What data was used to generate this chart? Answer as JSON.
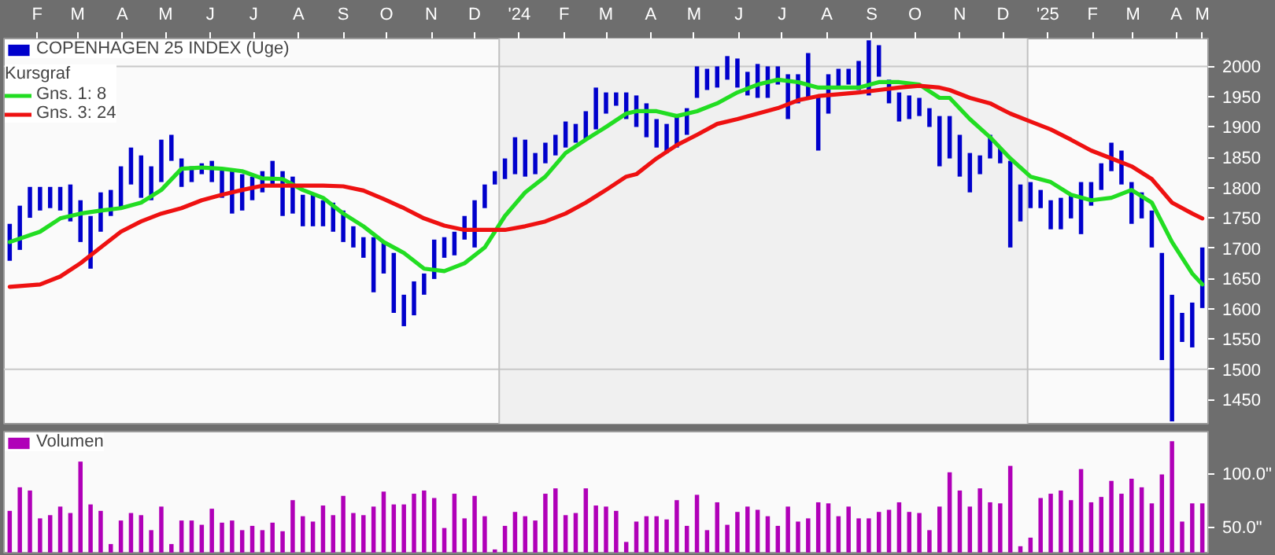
{
  "chart_data": [
    {
      "type": "bar",
      "x": [
        "2023-01-27",
        "2023-02-03",
        "2023-02-10",
        "2023-02-17",
        "2023-02-24",
        "2023-03-03",
        "2023-03-10",
        "2023-03-17",
        "2023-03-24",
        "2023-03-31",
        "2023-04-07",
        "2023-04-14",
        "2023-04-21",
        "2023-04-28",
        "2023-05-05",
        "2023-05-12",
        "2023-05-19",
        "2023-05-26",
        "2023-06-02",
        "2023-06-09",
        "2023-06-16",
        "2023-06-23",
        "2023-06-30",
        "2023-07-07",
        "2023-07-14",
        "2023-07-21",
        "2023-07-28",
        "2023-08-04",
        "2023-08-11",
        "2023-08-18",
        "2023-08-25",
        "2023-09-01",
        "2023-09-08",
        "2023-09-15",
        "2023-09-22",
        "2023-09-29",
        "2023-10-06",
        "2023-10-13",
        "2023-10-20",
        "2023-10-27",
        "2023-11-03",
        "2023-11-10",
        "2023-11-17",
        "2023-11-24",
        "2023-12-01",
        "2023-12-08",
        "2023-12-15",
        "2023-12-22",
        "2023-12-29",
        "2024-01-05",
        "2024-01-12",
        "2024-01-19",
        "2024-01-26",
        "2024-02-02",
        "2024-02-09",
        "2024-02-16",
        "2024-02-23",
        "2024-03-01",
        "2024-03-08",
        "2024-03-15",
        "2024-03-22",
        "2024-03-29",
        "2024-04-05",
        "2024-04-12",
        "2024-04-19",
        "2024-04-26",
        "2024-05-03",
        "2024-05-10",
        "2024-05-17",
        "2024-05-24",
        "2024-05-31",
        "2024-06-07",
        "2024-06-14",
        "2024-06-21",
        "2024-06-28",
        "2024-07-05",
        "2024-07-12",
        "2024-07-19",
        "2024-07-26",
        "2024-08-02",
        "2024-08-09",
        "2024-08-16",
        "2024-08-23",
        "2024-08-30",
        "2024-09-06",
        "2024-09-13",
        "2024-09-20",
        "2024-09-27",
        "2024-10-04",
        "2024-10-11",
        "2024-10-18",
        "2024-10-25",
        "2024-11-01",
        "2024-11-08",
        "2024-11-15",
        "2024-11-22",
        "2024-11-29",
        "2024-12-06",
        "2024-12-13",
        "2024-12-20",
        "2024-12-27",
        "2025-01-03",
        "2025-01-10",
        "2025-01-17",
        "2025-01-24",
        "2025-01-31",
        "2025-02-07",
        "2025-02-14",
        "2025-02-21",
        "2025-02-28",
        "2025-03-07",
        "2025-03-14",
        "2025-03-21",
        "2025-03-28",
        "2025-04-04",
        "2025-04-11",
        "2025-04-18",
        "2025-04-25",
        "2025-05-02"
      ],
      "series": [
        {
          "name": "COPENHAGEN 25 INDEX (Uge)",
          "color": "#0000cc",
          "base": [
            1679,
            1697,
            1750,
            1762,
            1766,
            1762,
            1744,
            1710,
            1666,
            1727,
            1753,
            1766,
            1805,
            1783,
            1779,
            1809,
            1844,
            1801,
            1809,
            1822,
            1809,
            1783,
            1757,
            1762,
            1779,
            1792,
            1805,
            1753,
            1757,
            1736,
            1736,
            1736,
            1727,
            1710,
            1701,
            1684,
            1627,
            1658,
            1593,
            1571,
            1589,
            1623,
            1649,
            1684,
            1688,
            1714,
            1701,
            1766,
            1805,
            1814,
            1822,
            1818,
            1822,
            1840,
            1853,
            1866,
            1874,
            1879,
            1896,
            1922,
            1935,
            1913,
            1900,
            1883,
            1866,
            1857,
            1866,
            1887,
            1948,
            1961,
            1965,
            1978,
            1965,
            1952,
            1948,
            1948,
            1970,
            1913,
            1939,
            1948,
            1861,
            1922,
            1965,
            1970,
            1961,
            1952,
            1983,
            1939,
            1909,
            1913,
            1918,
            1900,
            1835,
            1848,
            1818,
            1792,
            1822,
            1848,
            1840,
            1701,
            1744,
            1766,
            1766,
            1731,
            1731,
            1749,
            1723,
            1770,
            1796,
            1827,
            1805,
            1740,
            1749,
            1701,
            1515,
            1414,
            1545,
            1536,
            1601
          ],
          "values": [
            61,
            73,
            51,
            39,
            35,
            39,
            61,
            69,
            87,
            65,
            43,
            69,
            61,
            70,
            56,
            70,
            43,
            47,
            26,
            18,
            35,
            48,
            70,
            60,
            39,
            35,
            39,
            74,
            61,
            52,
            52,
            43,
            48,
            52,
            35,
            34,
            91,
            52,
            99,
            52,
            56,
            35,
            65,
            34,
            39,
            39,
            78,
            39,
            22,
            34,
            61,
            61,
            35,
            34,
            34,
            43,
            31,
            47,
            69,
            35,
            22,
            44,
            52,
            56,
            47,
            48,
            52,
            44,
            52,
            35,
            35,
            39,
            48,
            39,
            56,
            52,
            30,
            74,
            48,
            74,
            91,
            65,
            31,
            26,
            48,
            91,
            52,
            39,
            48,
            39,
            30,
            31,
            83,
            70,
            69,
            65,
            31,
            39,
            26,
            143,
            61,
            43,
            30,
            48,
            52,
            39,
            86,
            39,
            44,
            47,
            56,
            69,
            43,
            61,
            177,
            209,
            48,
            74,
            100
          ]
        },
        {
          "name": "Gns. 1: 8",
          "type": "line",
          "color": "#22dd22",
          "x": [
            "2023-01-27",
            "2023-02-17",
            "2023-03-03",
            "2023-03-17",
            "2023-03-31",
            "2023-04-14",
            "2023-04-28",
            "2023-05-12",
            "2023-05-26",
            "2023-06-09",
            "2023-06-23",
            "2023-07-07",
            "2023-07-21",
            "2023-08-04",
            "2023-08-18",
            "2023-09-01",
            "2023-09-15",
            "2023-09-29",
            "2023-10-13",
            "2023-10-27",
            "2023-11-10",
            "2023-11-24",
            "2023-12-08",
            "2023-12-22",
            "2024-01-05",
            "2024-01-19",
            "2024-02-02",
            "2024-02-16",
            "2024-03-01",
            "2024-03-15",
            "2024-03-29",
            "2024-04-05",
            "2024-04-19",
            "2024-05-03",
            "2024-05-17",
            "2024-05-31",
            "2024-06-14",
            "2024-06-28",
            "2024-07-12",
            "2024-07-26",
            "2024-08-09",
            "2024-08-23",
            "2024-09-06",
            "2024-09-20",
            "2024-10-04",
            "2024-10-18",
            "2024-11-01",
            "2024-11-08",
            "2024-11-22",
            "2024-12-06",
            "2024-12-20",
            "2025-01-03",
            "2025-01-17",
            "2025-01-31",
            "2025-02-14",
            "2025-02-28",
            "2025-03-14",
            "2025-03-28",
            "2025-04-11",
            "2025-04-25",
            "2025-05-02"
          ],
          "values": [
            1710,
            1727,
            1749,
            1757,
            1762,
            1766,
            1775,
            1796,
            1831,
            1833,
            1831,
            1827,
            1815,
            1814,
            1796,
            1783,
            1757,
            1736,
            1710,
            1692,
            1666,
            1662,
            1675,
            1701,
            1753,
            1792,
            1818,
            1857,
            1879,
            1900,
            1922,
            1926,
            1926,
            1918,
            1926,
            1939,
            1957,
            1970,
            1978,
            1974,
            1965,
            1965,
            1965,
            1974,
            1974,
            1970,
            1948,
            1948,
            1913,
            1883,
            1848,
            1818,
            1809,
            1788,
            1779,
            1783,
            1796,
            1775,
            1710,
            1658,
            1640
          ]
        },
        {
          "name": "Gns. 3: 24",
          "type": "line",
          "color": "#ee1111",
          "x": [
            "2023-01-27",
            "2023-02-17",
            "2023-03-03",
            "2023-03-17",
            "2023-03-31",
            "2023-04-14",
            "2023-04-28",
            "2023-05-12",
            "2023-05-26",
            "2023-06-09",
            "2023-06-23",
            "2023-07-07",
            "2023-07-21",
            "2023-08-04",
            "2023-08-18",
            "2023-09-01",
            "2023-09-15",
            "2023-09-29",
            "2023-10-13",
            "2023-10-27",
            "2023-11-10",
            "2023-11-24",
            "2023-12-08",
            "2023-12-22",
            "2024-01-05",
            "2024-01-19",
            "2024-02-02",
            "2024-02-16",
            "2024-03-01",
            "2024-03-15",
            "2024-03-29",
            "2024-04-05",
            "2024-04-19",
            "2024-05-03",
            "2024-05-17",
            "2024-05-31",
            "2024-06-14",
            "2024-06-28",
            "2024-07-12",
            "2024-07-26",
            "2024-08-09",
            "2024-08-23",
            "2024-09-06",
            "2024-09-20",
            "2024-10-04",
            "2024-10-18",
            "2024-11-01",
            "2024-11-08",
            "2024-11-22",
            "2024-12-06",
            "2024-12-20",
            "2025-01-03",
            "2025-01-17",
            "2025-01-31",
            "2025-02-14",
            "2025-02-28",
            "2025-03-14",
            "2025-03-28",
            "2025-04-11",
            "2025-04-25",
            "2025-05-02"
          ],
          "values": [
            1636,
            1640,
            1653,
            1675,
            1701,
            1727,
            1744,
            1757,
            1766,
            1779,
            1788,
            1796,
            1803,
            1803,
            1803,
            1803,
            1802,
            1795,
            1781,
            1766,
            1749,
            1737,
            1730,
            1730,
            1730,
            1736,
            1744,
            1757,
            1775,
            1796,
            1818,
            1822,
            1848,
            1870,
            1887,
            1905,
            1913,
            1922,
            1931,
            1944,
            1951,
            1954,
            1957,
            1961,
            1965,
            1968,
            1965,
            1961,
            1948,
            1939,
            1922,
            1909,
            1896,
            1879,
            1861,
            1848,
            1835,
            1814,
            1775,
            1757,
            1749
          ]
        }
      ],
      "xlim": [
        "2023-01-23",
        "2025-05-06"
      ],
      "xticks": [
        {
          "value": "2023-02-15",
          "label": "F"
        },
        {
          "value": "2023-03-15",
          "label": "M"
        },
        {
          "value": "2023-04-15",
          "label": "A"
        },
        {
          "value": "2023-05-15",
          "label": "M"
        },
        {
          "value": "2023-06-15",
          "label": "J"
        },
        {
          "value": "2023-07-15",
          "label": "J"
        },
        {
          "value": "2023-08-15",
          "label": "A"
        },
        {
          "value": "2023-09-15",
          "label": "S"
        },
        {
          "value": "2023-10-15",
          "label": "O"
        },
        {
          "value": "2023-11-15",
          "label": "N"
        },
        {
          "value": "2023-12-15",
          "label": "D"
        },
        {
          "value": "2024-01-15",
          "label": "'24"
        },
        {
          "value": "2024-02-15",
          "label": "F"
        },
        {
          "value": "2024-03-15",
          "label": "M"
        },
        {
          "value": "2024-04-15",
          "label": "A"
        },
        {
          "value": "2024-05-15",
          "label": "M"
        },
        {
          "value": "2024-06-15",
          "label": "J"
        },
        {
          "value": "2024-07-15",
          "label": "J"
        },
        {
          "value": "2024-08-15",
          "label": "A"
        },
        {
          "value": "2024-09-15",
          "label": "S"
        },
        {
          "value": "2024-10-15",
          "label": "O"
        },
        {
          "value": "2024-11-15",
          "label": "N"
        },
        {
          "value": "2024-12-15",
          "label": "D"
        },
        {
          "value": "2025-01-15",
          "label": "'25"
        },
        {
          "value": "2025-02-15",
          "label": "F"
        },
        {
          "value": "2025-03-15",
          "label": "M"
        },
        {
          "value": "2025-04-14",
          "label": "A"
        },
        {
          "value": "2025-05-02",
          "label": "M"
        }
      ],
      "ylim": [
        1410,
        2046
      ],
      "yticks": [
        1450,
        1500,
        1550,
        1600,
        1650,
        1700,
        1750,
        1800,
        1850,
        1900,
        1950,
        2000
      ],
      "ref_lines": [
        {
          "axis": "y",
          "value": 2000,
          "color": "#c8c8c8"
        },
        {
          "axis": "y",
          "value": 1500,
          "color": "#c8c8c8"
        },
        {
          "axis": "x",
          "value": "2024-01-01",
          "color": "#c0c0c0"
        },
        {
          "axis": "x",
          "value": "2025-01-01",
          "color": "#c0c0c0"
        }
      ],
      "bands": [
        {
          "axis": "x",
          "from": "2024-01-01",
          "to": "2025-01-01",
          "color": "#f0f0f0"
        }
      ],
      "legend": "top left",
      "legend_title": "Kursgraf"
    },
    {
      "type": "bar",
      "x": [
        "2023-01-27",
        "2023-02-03",
        "2023-02-10",
        "2023-02-17",
        "2023-02-24",
        "2023-03-03",
        "2023-03-10",
        "2023-03-17",
        "2023-03-24",
        "2023-03-31",
        "2023-04-07",
        "2023-04-14",
        "2023-04-21",
        "2023-04-28",
        "2023-05-05",
        "2023-05-12",
        "2023-05-19",
        "2023-05-26",
        "2023-06-02",
        "2023-06-09",
        "2023-06-16",
        "2023-06-23",
        "2023-06-30",
        "2023-07-07",
        "2023-07-14",
        "2023-07-21",
        "2023-07-28",
        "2023-08-04",
        "2023-08-11",
        "2023-08-18",
        "2023-08-25",
        "2023-09-01",
        "2023-09-08",
        "2023-09-15",
        "2023-09-22",
        "2023-09-29",
        "2023-10-06",
        "2023-10-13",
        "2023-10-20",
        "2023-10-27",
        "2023-11-03",
        "2023-11-10",
        "2023-11-17",
        "2023-11-24",
        "2023-12-01",
        "2023-12-08",
        "2023-12-15",
        "2023-12-22",
        "2023-12-29",
        "2024-01-05",
        "2024-01-12",
        "2024-01-19",
        "2024-01-26",
        "2024-02-02",
        "2024-02-09",
        "2024-02-16",
        "2024-02-23",
        "2024-03-01",
        "2024-03-08",
        "2024-03-15",
        "2024-03-22",
        "2024-03-29",
        "2024-04-05",
        "2024-04-12",
        "2024-04-19",
        "2024-04-26",
        "2024-05-03",
        "2024-05-10",
        "2024-05-17",
        "2024-05-24",
        "2024-05-31",
        "2024-06-07",
        "2024-06-14",
        "2024-06-21",
        "2024-06-28",
        "2024-07-05",
        "2024-07-12",
        "2024-07-19",
        "2024-07-26",
        "2024-08-02",
        "2024-08-09",
        "2024-08-16",
        "2024-08-23",
        "2024-08-30",
        "2024-09-06",
        "2024-09-13",
        "2024-09-20",
        "2024-09-27",
        "2024-10-04",
        "2024-10-11",
        "2024-10-18",
        "2024-10-25",
        "2024-11-01",
        "2024-11-08",
        "2024-11-15",
        "2024-11-22",
        "2024-11-29",
        "2024-12-06",
        "2024-12-13",
        "2024-12-20",
        "2024-12-27",
        "2025-01-03",
        "2025-01-10",
        "2025-01-17",
        "2025-01-24",
        "2025-01-31",
        "2025-02-07",
        "2025-02-14",
        "2025-02-21",
        "2025-02-28",
        "2025-03-07",
        "2025-03-14",
        "2025-03-21",
        "2025-03-28",
        "2025-04-04",
        "2025-04-11",
        "2025-04-18",
        "2025-04-25",
        "2025-05-02"
      ],
      "series": [
        {
          "name": "Volumen",
          "color": "#b000b8",
          "values": [
            66,
            88,
            85,
            59,
            62,
            70,
            64,
            112,
            72,
            66,
            35,
            57,
            64,
            62,
            48,
            70,
            35,
            57,
            57,
            53,
            68,
            55,
            57,
            48,
            52,
            48,
            55,
            47,
            76,
            61,
            56,
            71,
            62,
            80,
            64,
            62,
            70,
            84,
            72,
            72,
            82,
            85,
            78,
            50,
            82,
            59,
            80,
            61,
            30,
            52,
            65,
            61,
            57,
            82,
            87,
            62,
            64,
            87,
            71,
            70,
            66,
            37,
            56,
            61,
            61,
            58,
            76,
            52,
            81,
            48,
            74,
            53,
            65,
            70,
            67,
            61,
            52,
            70,
            56,
            59,
            74,
            73,
            61,
            70,
            59,
            59,
            65,
            67,
            74,
            65,
            64,
            48,
            70,
            102,
            85,
            70,
            87,
            74,
            73,
            108,
            33,
            41,
            78,
            82,
            85,
            76,
            105,
            74,
            79,
            94,
            82,
            96,
            88,
            73,
            100,
            131,
            56,
            73,
            73
          ]
        }
      ],
      "xlim": [
        "2023-01-23",
        "2025-05-06"
      ],
      "ylim": [
        27,
        140
      ],
      "yticks": [
        {
          "value": 50,
          "label": "50.0\""
        },
        {
          "value": 100,
          "label": "100.0\""
        }
      ],
      "tick_labels": "y",
      "legend": "top left"
    }
  ]
}
